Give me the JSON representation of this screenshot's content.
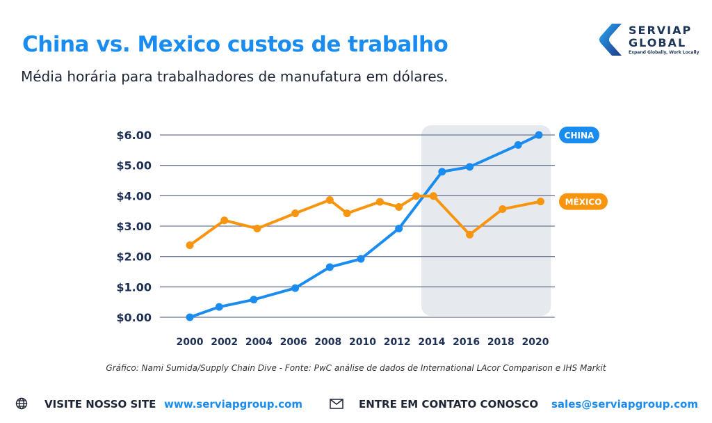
{
  "header": {
    "title": "China vs. Mexico custos de trabalho",
    "subtitle": "Média horária para trabalhadores de manufatura em dólares."
  },
  "logo": {
    "line1": "SERVIAP",
    "line2": "GLOBAL",
    "tagline": "Expand Globally, Work Locally"
  },
  "chart_data": {
    "type": "line",
    "title": "China vs. Mexico custos de trabalho",
    "ylim": [
      0,
      6
    ],
    "xlim": [
      2000,
      2020
    ],
    "y_ticks": [
      "$0.00",
      "$1.00",
      "$2.00",
      "$3.00",
      "$4.00",
      "$5.00",
      "$6.00"
    ],
    "x_ticks": [
      "2000",
      "2002",
      "2004",
      "2006",
      "2008",
      "2010",
      "2012",
      "2014",
      "2016",
      "2018",
      "2020"
    ],
    "highlight_range": [
      2013.4,
      2020.9
    ],
    "grid": true,
    "series": [
      {
        "name": "CHINA",
        "color": "#1a8cf0",
        "x": [
          2000,
          2001.7,
          2003.7,
          2006.1,
          2008.1,
          2009.9,
          2012.1,
          2014.6,
          2016.2,
          2019.0,
          2020.2
        ],
        "y": [
          0.0,
          0.34,
          0.58,
          0.96,
          1.65,
          1.92,
          2.92,
          4.79,
          4.95,
          5.67,
          6.0
        ]
      },
      {
        "name": "MÉXICO",
        "color": "#f7950f",
        "x": [
          2000,
          2002.0,
          2003.9,
          2006.1,
          2008.1,
          2009.1,
          2011.0,
          2012.1,
          2013.1,
          2014.1,
          2016.2,
          2018.1,
          2020.3
        ],
        "y": [
          2.37,
          3.19,
          2.92,
          3.42,
          3.86,
          3.42,
          3.8,
          3.63,
          3.99,
          3.99,
          2.72,
          3.56,
          3.81
        ]
      }
    ]
  },
  "source": "Gráfico: Nami Sumida/Supply Chain Dive - Fonte: PwC análise de dados de International LAcor Comparison e IHS Markit",
  "footer": {
    "visit_label": "VISITE NOSSO SITE",
    "site": "www.serviapgroup.com",
    "contact_label": "ENTRE EM CONTATO CONOSCO",
    "email": "sales@serviapgroup.com"
  }
}
